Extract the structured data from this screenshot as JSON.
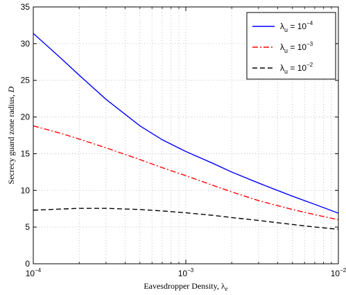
{
  "chart_data": {
    "type": "line",
    "xscale": "log",
    "xlim": [
      0.0001,
      0.01
    ],
    "ylim": [
      0,
      35
    ],
    "grid": true,
    "legend_position": "top-right",
    "xlabel": "Eavesdropper Density, λ",
    "xlabel_subscript": "e",
    "ylabel": "Secrecy guard zone radius, ",
    "ylabel_symbol": "D",
    "x_ticks": [
      {
        "value": 0.0001,
        "base": "10",
        "exp": "−4"
      },
      {
        "value": 0.001,
        "base": "10",
        "exp": "−3"
      },
      {
        "value": 0.01,
        "base": "10",
        "exp": "−2"
      }
    ],
    "y_ticks": [
      {
        "value": 0,
        "label": "0"
      },
      {
        "value": 5,
        "label": "5"
      },
      {
        "value": 10,
        "label": "10"
      },
      {
        "value": 15,
        "label": "15"
      },
      {
        "value": 20,
        "label": "20"
      },
      {
        "value": 25,
        "label": "25"
      },
      {
        "value": 30,
        "label": "30"
      },
      {
        "value": 35,
        "label": "35"
      }
    ],
    "series": [
      {
        "name": "λ",
        "name_subscript": "u",
        "name_rhs": " = 10",
        "name_exp": "−4",
        "color": "#0000ff",
        "dash": "solid",
        "x": [
          0.0001,
          0.00015,
          0.0002,
          0.0003,
          0.0005,
          0.0007,
          0.001,
          0.0015,
          0.002,
          0.003,
          0.005,
          0.007,
          0.01
        ],
        "y": [
          31.4,
          28.1,
          25.7,
          22.4,
          18.8,
          16.9,
          15.3,
          13.7,
          12.5,
          11.0,
          9.2,
          8.1,
          6.9
        ]
      },
      {
        "name": "λ",
        "name_subscript": "u",
        "name_rhs": " = 10",
        "name_exp": "−3",
        "color": "#ff0000",
        "dash": "dashdot",
        "x": [
          0.0001,
          0.00015,
          0.0002,
          0.0003,
          0.0005,
          0.0007,
          0.001,
          0.0015,
          0.002,
          0.003,
          0.005,
          0.007,
          0.01
        ],
        "y": [
          18.8,
          17.8,
          17.0,
          15.8,
          14.2,
          13.1,
          12.0,
          10.7,
          9.8,
          8.6,
          7.4,
          6.7,
          6.0
        ]
      },
      {
        "name": "λ",
        "name_subscript": "u",
        "name_rhs": " = 10",
        "name_exp": "−2",
        "color": "#000000",
        "dash": "dashed",
        "x": [
          0.0001,
          0.00015,
          0.0002,
          0.0003,
          0.0005,
          0.0007,
          0.001,
          0.0015,
          0.002,
          0.003,
          0.005,
          0.007,
          0.01
        ],
        "y": [
          7.3,
          7.45,
          7.55,
          7.55,
          7.4,
          7.2,
          6.95,
          6.6,
          6.3,
          5.9,
          5.35,
          5.0,
          4.7
        ]
      }
    ]
  }
}
